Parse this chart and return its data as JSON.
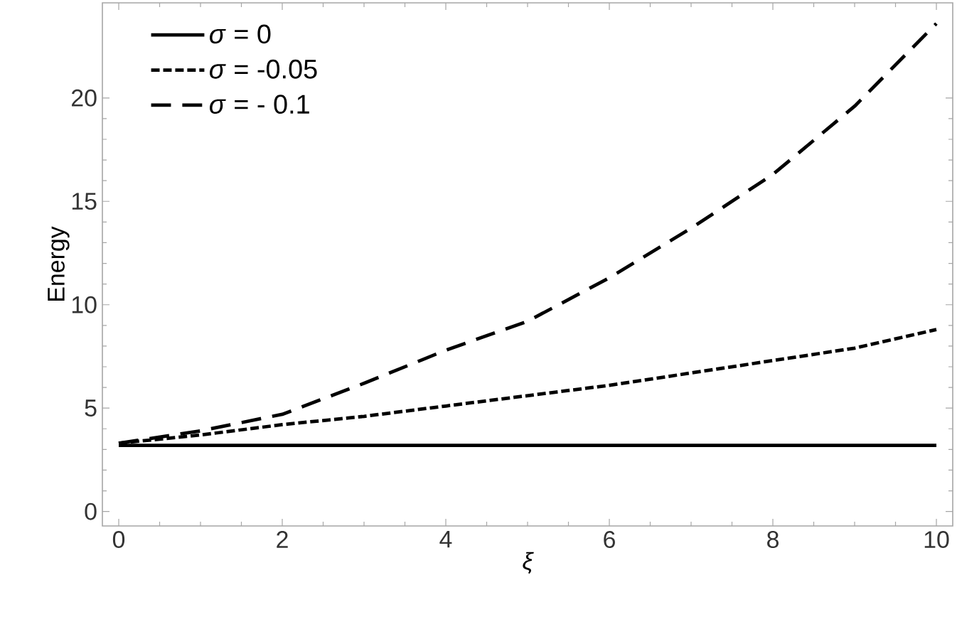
{
  "chart_data": {
    "type": "line",
    "xlabel": "ξ",
    "ylabel": "Energy",
    "x": [
      0,
      1,
      2,
      3,
      4,
      5,
      6,
      7,
      8,
      9,
      10
    ],
    "series": [
      {
        "name": "*σ* =  0",
        "color": "#000000",
        "line_style": "solid",
        "values": [
          3.2,
          3.2,
          3.2,
          3.2,
          3.2,
          3.2,
          3.2,
          3.2,
          3.2,
          3.2,
          3.2
        ]
      },
      {
        "name": "*σ* =  -0.05",
        "color": "#000000",
        "line_style": "dotted",
        "values": [
          3.3,
          3.7,
          4.2,
          4.6,
          5.1,
          5.6,
          6.1,
          6.7,
          7.3,
          7.9,
          8.8
        ]
      },
      {
        "name": "*σ* = - 0.1",
        "color": "#000000",
        "line_style": "dashed",
        "values": [
          3.3,
          3.9,
          4.7,
          6.2,
          7.8,
          9.2,
          11.3,
          13.7,
          16.3,
          19.6,
          23.6
        ]
      }
    ],
    "xlim": [
      -0.2,
      10.2
    ],
    "ylim": [
      -0.7,
      24.6
    ],
    "xticks": [
      0,
      2,
      4,
      6,
      8,
      10
    ],
    "yticks": [
      0,
      5,
      10,
      15,
      20
    ],
    "legend": "top left"
  }
}
